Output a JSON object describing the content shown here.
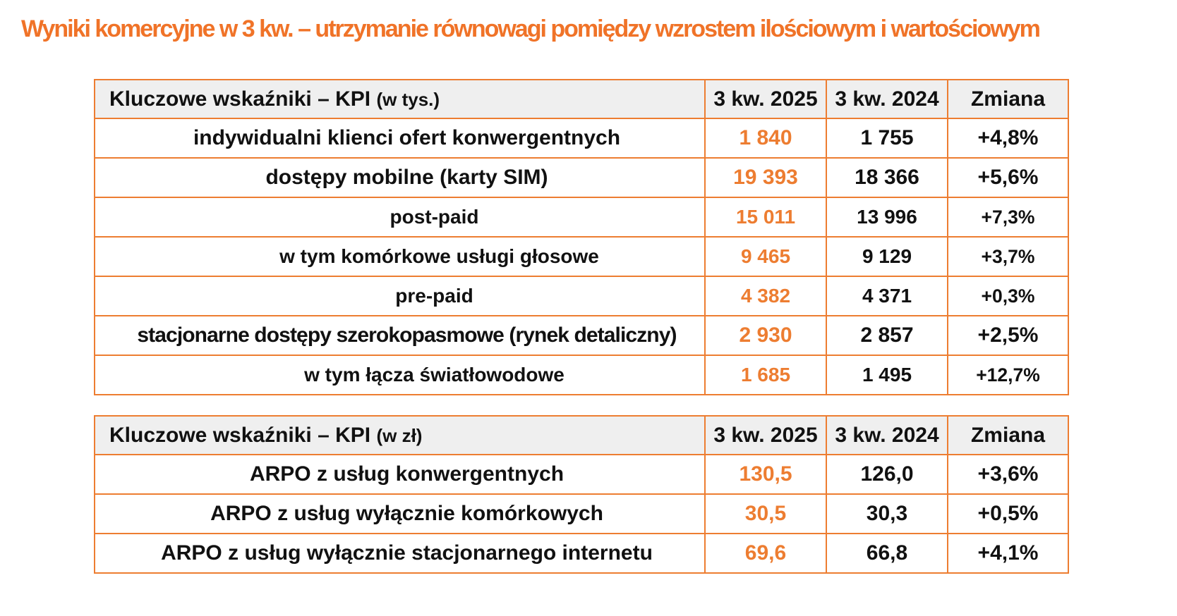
{
  "title": "Wyniki komercyjne w 3 kw. – utrzymanie równowagi pomiędzy wzrostem ilościowym i wartościowym",
  "colors": {
    "accent_orange": "#ED7D31",
    "title_orange": "#F07328",
    "header_background": "#EFEFEF",
    "text_black": "#111111"
  },
  "chart_data": [
    {
      "type": "table",
      "title": "Kluczowe wskaźniki – KPI",
      "unit": "(w tys.)",
      "columns": [
        "3 kw. 2025",
        "3 kw. 2024",
        "Zmiana"
      ],
      "rows": [
        {
          "label": "indywidualni klienci ofert konwergentnych",
          "indent": 0,
          "q3_2025": "1 840",
          "q3_2024": "1 755",
          "change": "+4,8%"
        },
        {
          "label": "dostępy mobilne (karty SIM)",
          "indent": 0,
          "q3_2025": "19 393",
          "q3_2024": "18 366",
          "change": "+5,6%"
        },
        {
          "label": "post-paid",
          "indent": 1,
          "q3_2025": "15 011",
          "q3_2024": "13 996",
          "change": "+7,3%"
        },
        {
          "label": "w tym komórkowe usługi głosowe",
          "indent": 2,
          "q3_2025": "9 465",
          "q3_2024": "9 129",
          "change": "+3,7%"
        },
        {
          "label": "pre-paid",
          "indent": 1,
          "q3_2025": "4 382",
          "q3_2024": "4 371",
          "change": "+0,3%"
        },
        {
          "label": "stacjonarne dostępy szerokopasmowe (rynek detaliczny)",
          "indent": 0,
          "q3_2025": "2 930",
          "q3_2024": "2 857",
          "change": "+2,5%"
        },
        {
          "label": "w tym łącza światłowodowe",
          "indent": 1,
          "q3_2025": "1 685",
          "q3_2024": "1 495",
          "change": "+12,7%"
        }
      ]
    },
    {
      "type": "table",
      "title": "Kluczowe wskaźniki – KPI",
      "unit": "(w zł)",
      "columns": [
        "3 kw. 2025",
        "3 kw. 2024",
        "Zmiana"
      ],
      "rows": [
        {
          "label": "ARPO z usług konwergentnych",
          "indent": 0,
          "q3_2025": "130,5",
          "q3_2024": "126,0",
          "change": "+3,6%"
        },
        {
          "label": "ARPO z usług wyłącznie komórkowych",
          "indent": 0,
          "q3_2025": "30,5",
          "q3_2024": "30,3",
          "change": "+0,5%"
        },
        {
          "label": "ARPO z usług wyłącznie stacjonarnego internetu",
          "indent": 0,
          "q3_2025": "69,6",
          "q3_2024": "66,8",
          "change": "+4,1%"
        }
      ]
    }
  ]
}
